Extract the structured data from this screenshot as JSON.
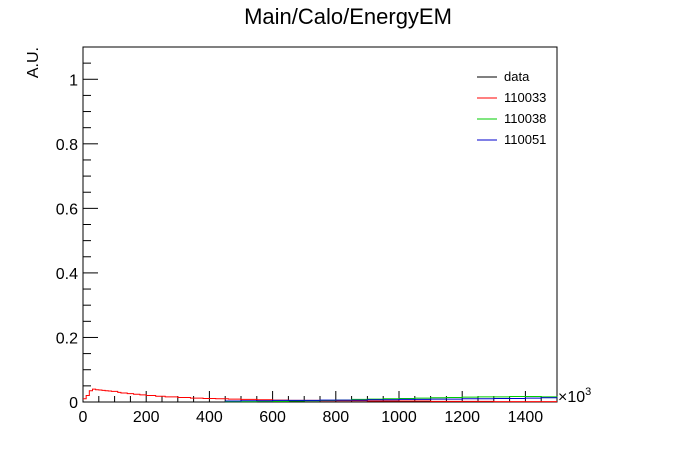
{
  "chart_data": {
    "type": "line",
    "title": "Main/Calo/EnergyEM",
    "ylabel": "A.U.",
    "xlabel": "",
    "x_multiplier_label": "×10",
    "x_multiplier_exp": "3",
    "xlim": [
      0,
      1500
    ],
    "ylim": [
      0,
      1.1
    ],
    "xticks": [
      0,
      200,
      400,
      600,
      800,
      1000,
      1200,
      1400
    ],
    "yticks": [
      0,
      0.2,
      0.4,
      0.6,
      0.8,
      1
    ],
    "xtick_labels": [
      "0",
      "200",
      "400",
      "600",
      "800",
      "1000",
      "1200",
      "1400"
    ],
    "ytick_labels": [
      "0",
      "0.2",
      "0.4",
      "0.6",
      "0.8",
      "1"
    ],
    "grid": false,
    "legend_position": "top-right",
    "series": [
      {
        "name": "data",
        "color": "#000000",
        "style": "step",
        "x": [],
        "y": []
      },
      {
        "name": "110033",
        "color": "#ff0000",
        "style": "step",
        "x": [
          0,
          10,
          20,
          30,
          40,
          50,
          60,
          70,
          80,
          90,
          100,
          110,
          120,
          140,
          160,
          180,
          200,
          230,
          260,
          300,
          340,
          380,
          420,
          460,
          500,
          550,
          600,
          650,
          700,
          750,
          800,
          900,
          1000,
          1100,
          1200,
          1300,
          1400,
          1500
        ],
        "y": [
          0.01,
          0.02,
          0.035,
          0.04,
          0.038,
          0.037,
          0.036,
          0.035,
          0.034,
          0.033,
          0.033,
          0.03,
          0.028,
          0.026,
          0.024,
          0.022,
          0.02,
          0.018,
          0.016,
          0.014,
          0.012,
          0.011,
          0.01,
          0.009,
          0.008,
          0.007,
          0.006,
          0.005,
          0.005,
          0.004,
          0.004,
          0.003,
          0.003,
          0.002,
          0.002,
          0.001,
          0.001,
          0.001
        ]
      },
      {
        "name": "110038",
        "color": "#00cc00",
        "style": "step",
        "x": [
          450,
          500,
          550,
          600,
          650,
          700,
          750,
          800,
          850,
          900,
          950,
          1000,
          1050,
          1100,
          1150,
          1200,
          1250,
          1300,
          1350,
          1400,
          1450,
          1500
        ],
        "y": [
          0.001,
          0.001,
          0.002,
          0.002,
          0.003,
          0.004,
          0.005,
          0.006,
          0.008,
          0.009,
          0.01,
          0.011,
          0.012,
          0.013,
          0.014,
          0.015,
          0.016,
          0.016,
          0.017,
          0.017,
          0.016,
          0.015
        ]
      },
      {
        "name": "110051",
        "color": "#0000cc",
        "style": "step",
        "x": [
          450,
          500,
          550,
          600,
          650,
          700,
          750,
          800,
          850,
          900,
          950,
          1000,
          1050,
          1100,
          1150,
          1200,
          1250,
          1300,
          1350,
          1400,
          1450,
          1500
        ],
        "y": [
          0.003,
          0.004,
          0.004,
          0.005,
          0.005,
          0.005,
          0.006,
          0.006,
          0.006,
          0.007,
          0.007,
          0.008,
          0.008,
          0.009,
          0.009,
          0.01,
          0.01,
          0.011,
          0.011,
          0.012,
          0.013,
          0.014
        ]
      }
    ]
  }
}
